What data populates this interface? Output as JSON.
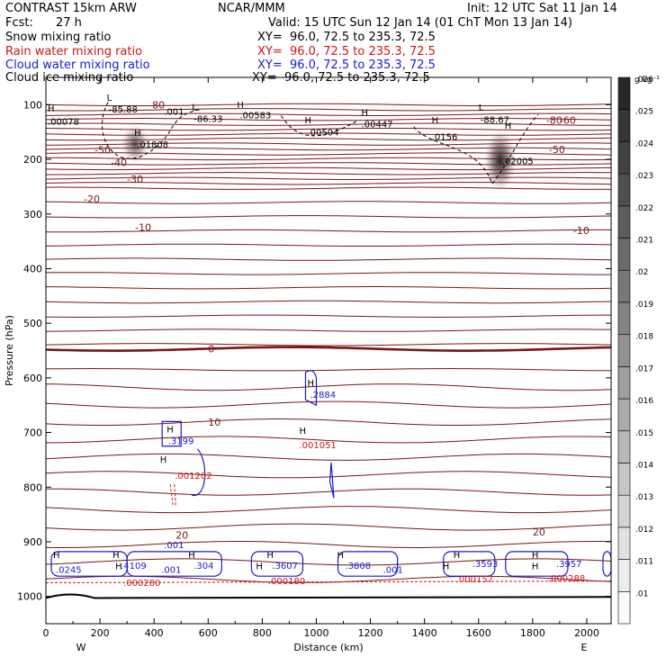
{
  "header": {
    "title": "CONTRAST 15km ARW",
    "org": "NCAR/MMM",
    "init": "Init: 12 UTC Sat 11 Jan 14",
    "fcst_label": "Fcst:",
    "fcst_value": "27 h",
    "valid": "Valid: 15 UTC Sun 12 Jan 14 (01 ChT Mon 13 Jan 14)",
    "fields": [
      {
        "name": "Snow mixing ratio",
        "xy": "XY=  96.0, 72.5 to 235.3, 72.5",
        "color": "#000000"
      },
      {
        "name": "Rain water mixing ratio",
        "xy": "XY=  96.0, 72.5 to 235.3, 72.5",
        "color": "#d01414"
      },
      {
        "name": "Cloud water mixing ratio",
        "xy": "XY=  96.0, 72.5 to 235.3, 72.5",
        "color": "#1a1ad0"
      },
      {
        "name": "Cloud ice mixing ratio",
        "xy": "XY=  96.0, 72.5 to 235.3, 72.5",
        "color": "#000000"
      }
    ]
  },
  "chart_data": {
    "type": "heatmap",
    "xlabel": "Distance (km)",
    "ylabel": "Pressure (hPa)",
    "xlim": [
      0,
      2090
    ],
    "ylim": [
      1050,
      50
    ],
    "xticks": [
      0,
      200,
      400,
      600,
      800,
      1000,
      1200,
      1400,
      1600,
      1800,
      2000
    ],
    "yticks": [
      100,
      200,
      300,
      400,
      500,
      600,
      700,
      800,
      900,
      1000
    ],
    "x_end_labels": {
      "left": "W",
      "right": "E"
    },
    "colorbar": {
      "unit": "g kg⁻¹",
      "values": [
        ".01",
        ".011",
        ".012",
        ".013",
        ".014",
        ".015",
        ".016",
        ".017",
        ".018",
        ".019",
        ".02",
        ".021",
        ".022",
        ".023",
        ".024",
        ".025",
        ".026"
      ]
    },
    "isotherms": {
      "color": "#7a1515",
      "levels": [
        {
          "value": "-80",
          "p": 100
        },
        {
          "value": "-80",
          "p": 128
        },
        {
          "value": "-60",
          "p": 128
        },
        {
          "value": "-50",
          "p": 183
        },
        {
          "value": "-50",
          "p": 182
        },
        {
          "value": "-40",
          "p": 206
        },
        {
          "value": "-30",
          "p": 236
        },
        {
          "value": "-20",
          "p": 272
        },
        {
          "value": "-10",
          "p": 324
        },
        {
          "value": "-10",
          "p": 330
        },
        {
          "value": "0",
          "p": 547
        },
        {
          "value": "10",
          "p": 681
        },
        {
          "value": "20",
          "p": 888
        },
        {
          "value": "20",
          "p": 882
        }
      ]
    },
    "snow_maxima": [
      {
        "x": 330,
        "p": 172,
        "value": ".01808"
      },
      {
        "x": 1680,
        "p": 202,
        "value": ".02005"
      }
    ],
    "cloud_ice": {
      "lows": [
        {
          "x": 225,
          "p": 108,
          "value": "-85.88"
        },
        {
          "x": 540,
          "p": 125,
          "value": "-86.33"
        },
        {
          "x": 1600,
          "p": 127,
          "value": "-88.67"
        }
      ],
      "labels": [
        {
          "x": 430,
          "p": 112,
          "value": ".001"
        },
        {
          "x": 0,
          "p": 130,
          "value": ".00078"
        },
        {
          "x": 710,
          "p": 118,
          "value": ".00583"
        },
        {
          "x": 960,
          "p": 150,
          "value": ".00504"
        },
        {
          "x": 1160,
          "p": 135,
          "value": ".00447"
        },
        {
          "x": 1420,
          "p": 158,
          "value": ".0156"
        }
      ]
    },
    "rain_water": [
      {
        "x": 470,
        "p": 778,
        "value": ".001202"
      },
      {
        "x": 930,
        "p": 722,
        "value": ".001051"
      },
      {
        "x": 280,
        "p": 974,
        "value": ".000280"
      },
      {
        "x": 815,
        "p": 971,
        "value": ".000180"
      },
      {
        "x": 1510,
        "p": 968,
        "value": ".000157"
      },
      {
        "x": 1850,
        "p": 966,
        "value": ".000288"
      }
    ],
    "cloud_water": [
      {
        "x": 970,
        "p": 630,
        "value": ".2884"
      },
      {
        "x": 445,
        "p": 715,
        "value": ".3199"
      },
      {
        "x": 30,
        "p": 950,
        "value": ".0245"
      },
      {
        "x": 270,
        "p": 943,
        "value": ".4109"
      },
      {
        "x": 430,
        "p": 905,
        "value": ".001"
      },
      {
        "x": 420,
        "p": 950,
        "value": ".001"
      },
      {
        "x": 540,
        "p": 943,
        "value": ".304"
      },
      {
        "x": 830,
        "p": 943,
        "value": ".3607"
      },
      {
        "x": 1100,
        "p": 943,
        "value": ".3808"
      },
      {
        "x": 1240,
        "p": 950,
        "value": ".001"
      },
      {
        "x": 1570,
        "p": 940,
        "value": ".3593"
      },
      {
        "x": 1880,
        "p": 940,
        "value": ".3957"
      }
    ],
    "h_markers": [
      {
        "x": 0,
        "p": 113
      },
      {
        "x": 320,
        "p": 157
      },
      {
        "x": 700,
        "p": 106
      },
      {
        "x": 950,
        "p": 134
      },
      {
        "x": 1160,
        "p": 120
      },
      {
        "x": 1420,
        "p": 134
      },
      {
        "x": 1690,
        "p": 144
      },
      {
        "x": 960,
        "p": 615
      },
      {
        "x": 440,
        "p": 700
      },
      {
        "x": 415,
        "p": 755
      },
      {
        "x": 930,
        "p": 702
      },
      {
        "x": 20,
        "p": 930
      },
      {
        "x": 240,
        "p": 930
      },
      {
        "x": 520,
        "p": 930
      },
      {
        "x": 810,
        "p": 930
      },
      {
        "x": 1070,
        "p": 930
      },
      {
        "x": 1500,
        "p": 930
      },
      {
        "x": 1790,
        "p": 930
      },
      {
        "x": 250,
        "p": 950
      },
      {
        "x": 770,
        "p": 950
      },
      {
        "x": 1460,
        "p": 950
      },
      {
        "x": 1790,
        "p": 950
      }
    ],
    "l_markers": [
      {
        "x": 225,
        "p": 93
      },
      {
        "x": 540,
        "p": 110
      },
      {
        "x": 1600,
        "p": 110
      }
    ]
  }
}
